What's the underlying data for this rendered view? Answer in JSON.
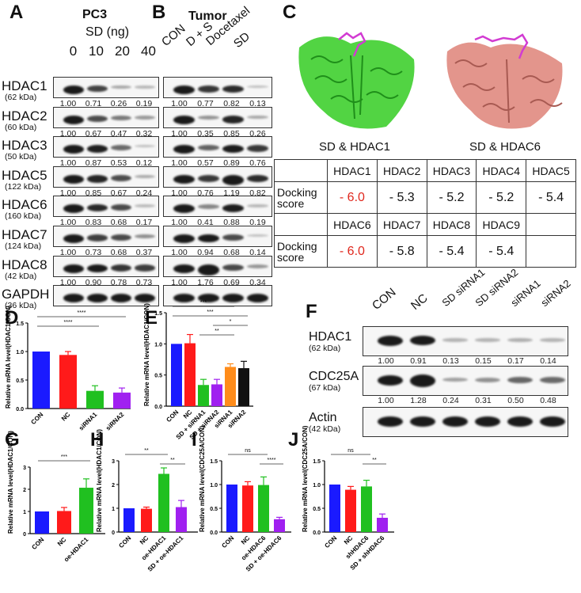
{
  "panels": {
    "A": {
      "label": "A",
      "title": "PC3",
      "subtitle": "SD (ng)",
      "lanes": [
        "0",
        "10",
        "20",
        "40"
      ],
      "rows": [
        {
          "protein": "HDAC1",
          "kda": "(62 kDa)",
          "values": [
            "1.00",
            "0.71",
            "0.26",
            "0.19"
          ]
        },
        {
          "protein": "HDAC2",
          "kda": "(60 kDa)",
          "values": [
            "1.00",
            "0.67",
            "0.47",
            "0.32"
          ]
        },
        {
          "protein": "HDAC3",
          "kda": "(50 kDa)",
          "values": [
            "1.00",
            "0.87",
            "0.53",
            "0.12"
          ]
        },
        {
          "protein": "HDAC5",
          "kda": "(122 kDa)",
          "values": [
            "1.00",
            "0.85",
            "0.67",
            "0.24"
          ]
        },
        {
          "protein": "HDAC6",
          "kda": "(160 kDa)",
          "values": [
            "1.00",
            "0.83",
            "0.68",
            "0.17"
          ]
        },
        {
          "protein": "HDAC7",
          "kda": "(124 kDa)",
          "values": [
            "1.00",
            "0.73",
            "0.68",
            "0.37"
          ]
        },
        {
          "protein": "HDAC8",
          "kda": "(42 kDa)",
          "values": [
            "1.00",
            "0.90",
            "0.78",
            "0.73"
          ]
        },
        {
          "protein": "GAPDH",
          "kda": "(36 kDa)",
          "values": []
        }
      ]
    },
    "B": {
      "label": "B",
      "title": "Tumor",
      "lanes": [
        "CON",
        "D + S",
        "Docetaxel",
        "SD"
      ],
      "rows": [
        {
          "values": [
            "1.00",
            "0.77",
            "0.82",
            "0.13"
          ]
        },
        {
          "values": [
            "1.00",
            "0.35",
            "0.85",
            "0.26"
          ]
        },
        {
          "values": [
            "1.00",
            "0.57",
            "0.89",
            "0.76"
          ]
        },
        {
          "values": [
            "1.00",
            "0.76",
            "1.19",
            "0.82"
          ]
        },
        {
          "values": [
            "1.00",
            "0.41",
            "0.88",
            "0.19"
          ]
        },
        {
          "values": [
            "1.00",
            "0.94",
            "0.68",
            "0.14"
          ]
        },
        {
          "values": [
            "1.00",
            "1.76",
            "0.69",
            "0.34"
          ]
        },
        {
          "values": []
        }
      ]
    },
    "C": {
      "label": "C",
      "structure_captions": [
        "SD & HDAC1",
        "SD & HDAC6"
      ],
      "protein_colors": [
        "#3fcf2f",
        "#e08a80"
      ],
      "ligand_color": "#d23bd2",
      "table": {
        "row_header": "Docking score",
        "row1_headers": [
          "HDAC1",
          "HDAC2",
          "HDAC3",
          "HDAC4",
          "HDAC5"
        ],
        "row1_scores": [
          "- 6.0",
          "- 5.3",
          "- 5.2",
          "- 5.2",
          "- 5.4"
        ],
        "row2_headers": [
          "HDAC6",
          "HDAC7",
          "HDAC8",
          "HDAC9",
          ""
        ],
        "row2_scores": [
          "- 6.0",
          "- 5.8",
          "- 5.4",
          "- 5.4",
          ""
        ],
        "highlight_color": "#e0281e"
      }
    },
    "F": {
      "label": "F",
      "lanes": [
        "CON",
        "NC",
        "SD siRNA1",
        "SD siRNA2",
        "siRNA1",
        "siRNA2"
      ],
      "rows": [
        {
          "protein": "HDAC1",
          "kda": "(62 kDa)",
          "values": [
            "1.00",
            "0.91",
            "0.13",
            "0.15",
            "0.17",
            "0.14"
          ]
        },
        {
          "protein": "CDC25A",
          "kda": "(67 kDa)",
          "values": [
            "1.00",
            "1.28",
            "0.24",
            "0.31",
            "0.50",
            "0.48"
          ]
        },
        {
          "protein": "Actin",
          "kda": "(42 kDa)",
          "values": []
        }
      ]
    }
  },
  "chart_data": [
    {
      "panel": "D",
      "type": "bar",
      "ylabel": "Relative mRNA level(HDAC1/CON)",
      "categories": [
        "CON",
        "NC",
        "siRNA1",
        "siRNA2"
      ],
      "values": [
        1.0,
        0.94,
        0.31,
        0.28
      ],
      "errors": [
        0,
        0.06,
        0.09,
        0.08
      ],
      "colors": [
        "#1a1aff",
        "#ff1a1a",
        "#20c020",
        "#a020f0"
      ],
      "ylim": [
        0,
        1.5
      ],
      "yticks": [
        "0.0",
        "0.5",
        "1.0",
        "1.5"
      ],
      "annotations": [
        {
          "from": 0,
          "to": 3,
          "text": "****"
        },
        {
          "from": 0,
          "to": 2,
          "text": "****"
        }
      ]
    },
    {
      "panel": "E",
      "type": "bar",
      "ylabel": "Relative mRNA level(HDAC1/CON)",
      "categories": [
        "CON",
        "NC",
        "SD + siRNA1",
        "SD + siRNA2",
        "siRNA1",
        "siRNA2"
      ],
      "values": [
        1.0,
        1.01,
        0.34,
        0.35,
        0.63,
        0.61
      ],
      "errors": [
        0,
        0.14,
        0.09,
        0.08,
        0.05,
        0.11
      ],
      "colors": [
        "#1a1aff",
        "#ff1a1a",
        "#20c020",
        "#a020f0",
        "#ff8c1a",
        "#111111"
      ],
      "ylim": [
        0,
        1.5
      ],
      "yticks": [
        "0.0",
        "0.5",
        "1.0",
        "1.5"
      ],
      "annotations": [
        {
          "from": 0,
          "to": 4,
          "text": "***"
        },
        {
          "from": 0,
          "to": 5,
          "text": "***"
        },
        {
          "from": 3,
          "to": 5,
          "text": "*"
        },
        {
          "from": 2,
          "to": 4,
          "text": "**"
        }
      ]
    },
    {
      "panel": "G",
      "type": "bar",
      "ylabel": "Relative mRNA level(HDAC1/CON)",
      "categories": [
        "CON",
        "NC",
        "oe-HDAC1"
      ],
      "values": [
        1.0,
        1.02,
        2.07
      ],
      "errors": [
        0,
        0.16,
        0.4
      ],
      "colors": [
        "#1a1aff",
        "#ff1a1a",
        "#20c020"
      ],
      "ylim": [
        0,
        3
      ],
      "yticks": [
        "0",
        "1",
        "2",
        "3"
      ],
      "annotations": [
        {
          "from": 0,
          "to": 2,
          "text": "***"
        }
      ]
    },
    {
      "panel": "H",
      "type": "bar",
      "ylabel": "Relative mRNA level(HDAC1/CON)",
      "categories": [
        "CON",
        "NC",
        "oe-HDAC1",
        "SD + oe-HDAC1"
      ],
      "values": [
        1.0,
        0.98,
        2.45,
        1.05
      ],
      "errors": [
        0,
        0.07,
        0.25,
        0.28
      ],
      "colors": [
        "#1a1aff",
        "#ff1a1a",
        "#20c020",
        "#a020f0"
      ],
      "ylim": [
        0,
        3
      ],
      "yticks": [
        "0",
        "1",
        "2",
        "3"
      ],
      "annotations": [
        {
          "from": 0,
          "to": 2,
          "text": "**"
        },
        {
          "from": 2,
          "to": 3,
          "text": "**"
        }
      ]
    },
    {
      "panel": "I",
      "type": "bar",
      "ylabel": "Relative mRNA level(CDC25A/CON)",
      "categories": [
        "CON",
        "NC",
        "oe-HDAC6",
        "SD + oe-HDAC6"
      ],
      "values": [
        1.0,
        0.98,
        0.99,
        0.27
      ],
      "errors": [
        0,
        0.08,
        0.17,
        0.04
      ],
      "colors": [
        "#1a1aff",
        "#ff1a1a",
        "#20c020",
        "#a020f0"
      ],
      "ylim": [
        0,
        1.5
      ],
      "yticks": [
        "0.0",
        "0.5",
        "1.0",
        "1.5"
      ],
      "annotations": [
        {
          "from": 0,
          "to": 2,
          "text": "ns"
        },
        {
          "from": 2,
          "to": 3,
          "text": "****"
        }
      ]
    },
    {
      "panel": "J",
      "type": "bar",
      "ylabel": "Relative mRNA level(CDC25A/CON)",
      "categories": [
        "CON",
        "NC",
        "shHDAC6",
        "SD + shHDAC6"
      ],
      "values": [
        1.0,
        0.89,
        0.96,
        0.3
      ],
      "errors": [
        0,
        0.07,
        0.13,
        0.08
      ],
      "colors": [
        "#1a1aff",
        "#ff1a1a",
        "#20c020",
        "#a020f0"
      ],
      "ylim": [
        0,
        1.5
      ],
      "yticks": [
        "0.0",
        "0.5",
        "1.0",
        "1.5"
      ],
      "annotations": [
        {
          "from": 0,
          "to": 2,
          "text": "ns"
        },
        {
          "from": 2,
          "to": 3,
          "text": "**"
        }
      ]
    }
  ]
}
